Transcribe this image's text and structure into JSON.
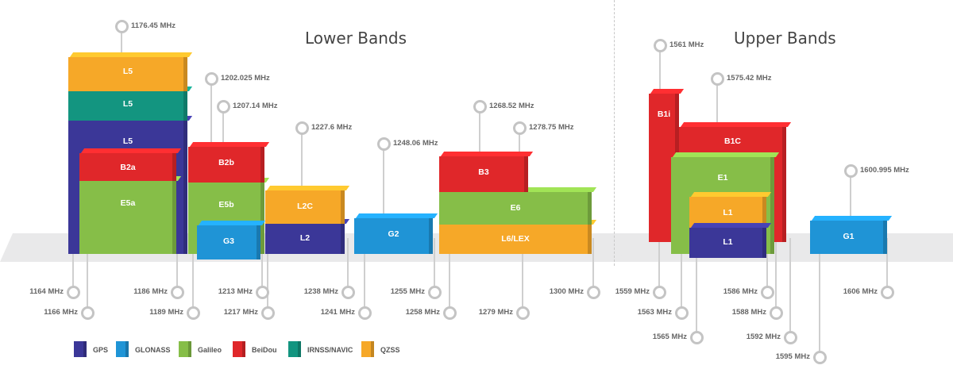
{
  "titles": {
    "lower": "Lower Bands",
    "upper": "Upper Bands"
  },
  "colors": {
    "GPS": "#3b3798",
    "GLONASS": "#1f94d6",
    "Galileo": "#86be48",
    "BeiDou": "#e0272a",
    "IRNSS": "#139580",
    "QZSS": "#f6a828"
  },
  "blocks": [
    {
      "label": "L5",
      "system": "GPS"
    },
    {
      "label": "L5",
      "system": "IRNSS"
    },
    {
      "label": "L5",
      "system": "QZSS"
    },
    {
      "label": "E5a",
      "system": "Galileo"
    },
    {
      "label": "B2a",
      "system": "BeiDou"
    },
    {
      "label": "E5b",
      "system": "Galileo"
    },
    {
      "label": "B2b",
      "system": "BeiDou"
    },
    {
      "label": "G3",
      "system": "GLONASS"
    },
    {
      "label": "L2",
      "system": "GPS"
    },
    {
      "label": "L2C",
      "system": "QZSS"
    },
    {
      "label": "G2",
      "system": "GLONASS"
    },
    {
      "label": "L6/LEX",
      "system": "QZSS"
    },
    {
      "label": "E6",
      "system": "Galileo"
    },
    {
      "label": "B3",
      "system": "BeiDou"
    },
    {
      "label": "B1i",
      "system": "BeiDou"
    },
    {
      "label": "B1C",
      "system": "BeiDou"
    },
    {
      "label": "E1",
      "system": "Galileo"
    },
    {
      "label": "L1",
      "system": "QZSS"
    },
    {
      "label": "L1",
      "system": "GPS"
    },
    {
      "label": "G1",
      "system": "GLONASS"
    }
  ],
  "top_markers": [
    "1176.45 MHz",
    "1202.025 MHz",
    "1207.14 MHz",
    "1227.6 MHz",
    "1248.06 MHz",
    "1268.52 MHz",
    "1278.75 MHz",
    "1561 MHz",
    "1575.42 MHz",
    "1600.995 MHz"
  ],
  "bottom_markers": [
    "1164 MHz",
    "1166 MHz",
    "1186 MHz",
    "1189 MHz",
    "1213 MHz",
    "1217 MHz",
    "1238 MHz",
    "1241 MHz",
    "1255 MHz",
    "1258 MHz",
    "1279 MHz",
    "1300 MHz",
    "1559 MHz",
    "1563 MHz",
    "1565 MHz",
    "1586 MHz",
    "1588 MHz",
    "1592 MHz",
    "1595 MHz",
    "1606 MHz"
  ],
  "legend": [
    {
      "label": "GPS",
      "system": "GPS"
    },
    {
      "label": "GLONASS",
      "system": "GLONASS"
    },
    {
      "label": "Galileo",
      "system": "Galileo"
    },
    {
      "label": "BeiDou",
      "system": "BeiDou"
    },
    {
      "label": "IRNSS/NAVIC",
      "system": "IRNSS"
    },
    {
      "label": "QZSS",
      "system": "QZSS"
    }
  ]
}
